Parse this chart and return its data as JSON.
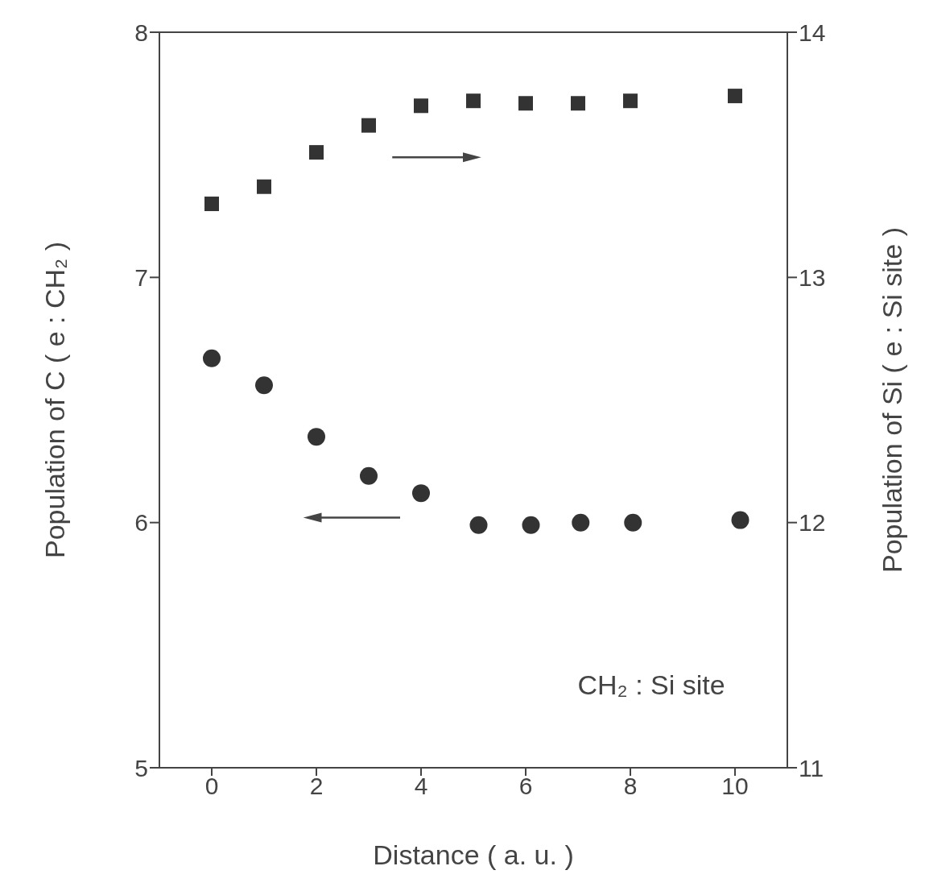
{
  "chart_data": {
    "type": "scatter",
    "xlabel": "Distance  ( a. u. )",
    "ylabel": "Population of C  ( e : CH₂ )",
    "y2label": "Population of Si  ( e : Si site )",
    "xlim": [
      -1,
      11
    ],
    "xticks": [
      0,
      2,
      4,
      6,
      8,
      10
    ],
    "ylim": [
      5,
      8
    ],
    "yticks": [
      5,
      6,
      7,
      8
    ],
    "y2lim": [
      11,
      14
    ],
    "y2ticks": [
      11,
      12,
      13,
      14
    ],
    "series": [
      {
        "color": "#333333",
        "marker": "circle",
        "x": [
          0,
          1,
          2,
          3,
          4,
          5.1,
          6.1,
          7.05,
          8.05,
          10.1
        ],
        "values": [
          6.67,
          6.56,
          6.35,
          6.19,
          6.12,
          5.99,
          5.99,
          6.0,
          6.0,
          6.01
        ]
      },
      {
        "color": "#333333",
        "marker": "square",
        "axis": "y2",
        "x": [
          0,
          1,
          2,
          3,
          4,
          5,
          6,
          7,
          8,
          10
        ],
        "values": [
          13.3,
          13.37,
          13.51,
          13.62,
          13.7,
          13.72,
          13.71,
          13.71,
          13.72,
          13.74
        ]
      }
    ],
    "annotations": [
      "CH₂ : Si site"
    ],
    "grid": false,
    "legend": false
  }
}
